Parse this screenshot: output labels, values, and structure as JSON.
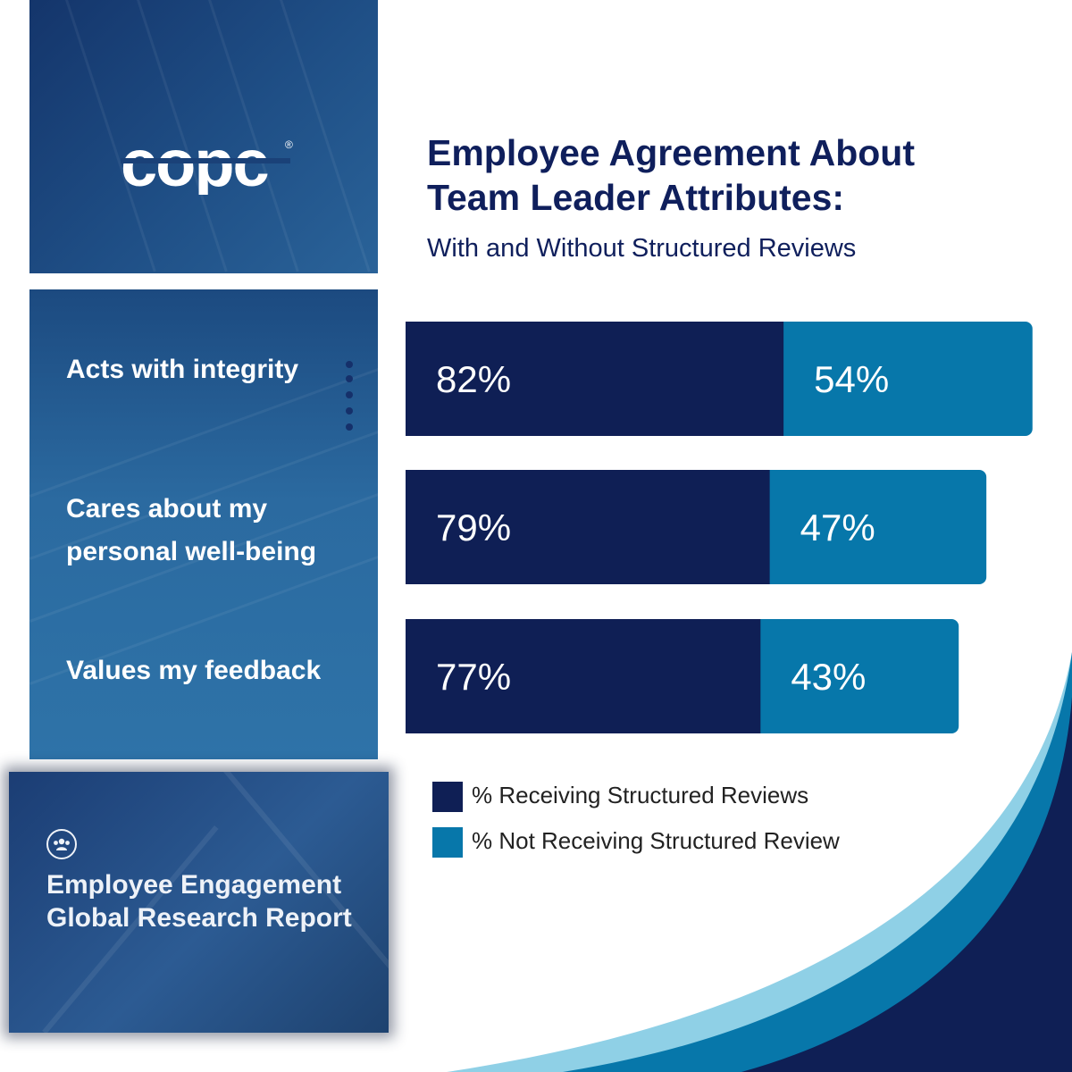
{
  "brand": {
    "logo_text": "copc",
    "registered_mark": "®"
  },
  "header": {
    "title_line1": "Employee Agreement About",
    "title_line2": "Team Leader Attributes:",
    "subtitle": "With and Without Structured Reviews"
  },
  "report": {
    "title_line1": "Employee Engagement",
    "title_line2": "Global Research Report",
    "icon": "people-group-icon"
  },
  "colors": {
    "receiving": "#0f1f55",
    "not_receiving": "#0777aa",
    "panel_blue": "#1f4f86"
  },
  "chart_data": {
    "type": "bar",
    "orientation": "horizontal-stacked",
    "categories": [
      "Acts with integrity",
      "Cares about my personal well-being",
      "Values my feedback"
    ],
    "category_lines": [
      [
        "Acts with integrity"
      ],
      [
        "Cares about my",
        "personal well-being"
      ],
      [
        "Values my feedback"
      ]
    ],
    "series": [
      {
        "name": "% Receiving Structured Reviews",
        "values": [
          82,
          79,
          77
        ],
        "labels": [
          "82%",
          "79%",
          "77%"
        ],
        "color": "#0f1f55"
      },
      {
        "name": "% Not Receiving Structured Review",
        "values": [
          54,
          47,
          43
        ],
        "labels": [
          "54%",
          "47%",
          "43%"
        ],
        "color": "#0777aa"
      }
    ],
    "legend_position": "bottom-left",
    "grid": false
  }
}
